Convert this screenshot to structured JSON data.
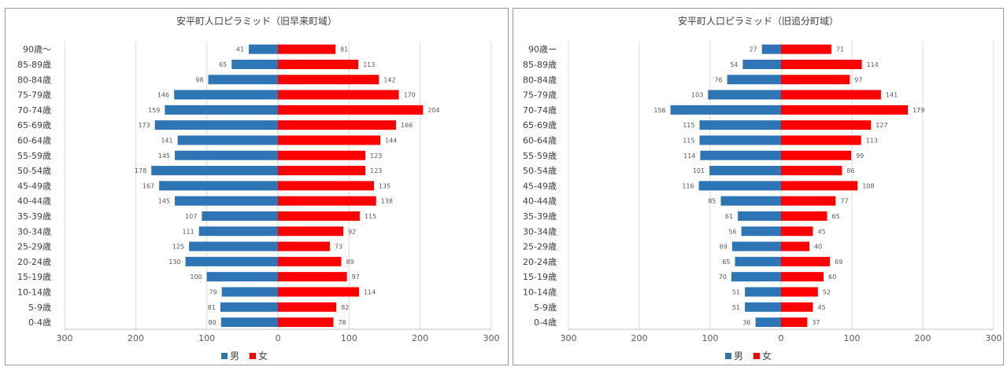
{
  "chart_data": [
    {
      "type": "bar",
      "title": "安平町人口ピラミッド（旧早来町域）",
      "categories": [
        "90歳～",
        "85-89歳",
        "80-84歳",
        "75-79歳",
        "70-74歳",
        "65-69歳",
        "60-64歳",
        "55-59歳",
        "50-54歳",
        "45-49歳",
        "40-44歳",
        "35-39歳",
        "30-34歳",
        "25-29歳",
        "20-24歳",
        "15-19歳",
        "10-14歳",
        "5-9歳",
        "0-4歳"
      ],
      "series": [
        {
          "name": "男",
          "color": "#2e75b6",
          "values": [
            41,
            65,
            98,
            146,
            159,
            173,
            141,
            145,
            178,
            167,
            145,
            107,
            111,
            125,
            130,
            100,
            79,
            81,
            80
          ]
        },
        {
          "name": "女",
          "color": "#ff0000",
          "values": [
            81,
            113,
            142,
            170,
            204,
            166,
            144,
            123,
            123,
            135,
            138,
            115,
            92,
            73,
            89,
            97,
            114,
            82,
            78
          ]
        }
      ],
      "xlim": [
        -300,
        300
      ],
      "xticks": [
        "300",
        "200",
        "100",
        "0",
        "100",
        "200",
        "300"
      ],
      "legend": "bottom",
      "grid": true
    },
    {
      "type": "bar",
      "title": "安平町人口ピラミッド（旧追分町域）",
      "categories": [
        "90歳ー",
        "85-89歳",
        "80-84歳",
        "75-79歳",
        "70-74歳",
        "65-69歳",
        "60-64歳",
        "55-59歳",
        "50-54歳",
        "45-49歳",
        "40-44歳",
        "35-39歳",
        "30-34歳",
        "25-29歳",
        "20-24歳",
        "15-19歳",
        "10-14歳",
        "5-9歳",
        "0-4歳"
      ],
      "series": [
        {
          "name": "男",
          "color": "#2e75b6",
          "values": [
            27,
            54,
            76,
            103,
            156,
            115,
            115,
            114,
            101,
            116,
            85,
            61,
            56,
            69,
            65,
            70,
            51,
            51,
            36
          ]
        },
        {
          "name": "女",
          "color": "#ff0000",
          "values": [
            71,
            114,
            97,
            141,
            179,
            127,
            113,
            99,
            86,
            108,
            77,
            65,
            45,
            40,
            69,
            60,
            52,
            45,
            37
          ]
        }
      ],
      "xlim": [
        -300,
        300
      ],
      "xticks": [
        "300",
        "200",
        "100",
        "0",
        "100",
        "200",
        "300"
      ],
      "legend": "bottom",
      "grid": true
    }
  ]
}
